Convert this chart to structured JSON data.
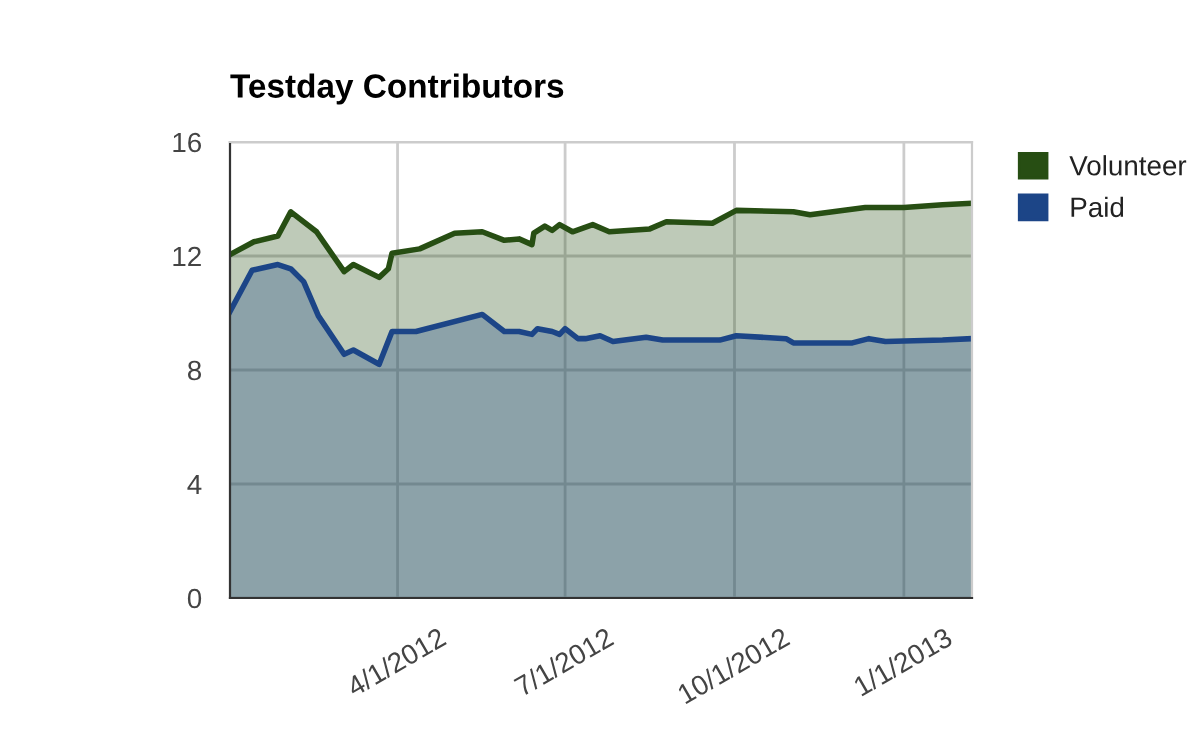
{
  "chart_data": {
    "type": "area",
    "title": "Testday Contributors",
    "xlim": [
      "2012-01-01",
      "2013-02-07"
    ],
    "xticks": [
      {
        "value": "2012-04-01",
        "label": "4/1/2012"
      },
      {
        "value": "2012-07-01",
        "label": "7/1/2012"
      },
      {
        "value": "2012-10-01",
        "label": "10/1/2012"
      },
      {
        "value": "2013-01-01",
        "label": "1/1/2013"
      }
    ],
    "ylim": [
      0,
      16
    ],
    "yticks": [
      0,
      4,
      8,
      12,
      16
    ],
    "grid": true,
    "legend": "right",
    "series": [
      {
        "name": "Volunteer",
        "color": "#274e13",
        "x": [
          "2012-01-01",
          "2012-01-14",
          "2012-01-27",
          "2012-02-03",
          "2012-02-17",
          "2012-03-03",
          "2012-03-08",
          "2012-03-22",
          "2012-03-27",
          "2012-03-29",
          "2012-04-13",
          "2012-05-02",
          "2012-05-17",
          "2012-05-29",
          "2012-06-06",
          "2012-06-13",
          "2012-06-14",
          "2012-06-20",
          "2012-06-24",
          "2012-06-28",
          "2012-07-05",
          "2012-07-16",
          "2012-07-25",
          "2012-08-16",
          "2012-08-25",
          "2012-09-19",
          "2012-10-02",
          "2012-11-02",
          "2012-11-11",
          "2012-12-11",
          "2013-01-01",
          "2013-01-22",
          "2013-02-07"
        ],
        "values": [
          12.05,
          12.5,
          12.7,
          13.55,
          12.85,
          11.45,
          11.7,
          11.25,
          11.55,
          12.1,
          12.25,
          12.8,
          12.85,
          12.55,
          12.6,
          12.4,
          12.8,
          13.05,
          12.9,
          13.1,
          12.85,
          13.1,
          12.85,
          12.95,
          13.2,
          13.15,
          13.6,
          13.55,
          13.45,
          13.7,
          13.7,
          13.8,
          13.85
        ]
      },
      {
        "name": "Paid",
        "color": "#1c4587",
        "x": [
          "2012-01-01",
          "2012-01-13",
          "2012-01-27",
          "2012-02-03",
          "2012-02-10",
          "2012-02-18",
          "2012-03-03",
          "2012-03-08",
          "2012-03-22",
          "2012-03-29",
          "2012-04-11",
          "2012-05-17",
          "2012-05-29",
          "2012-06-06",
          "2012-06-13",
          "2012-06-16",
          "2012-06-24",
          "2012-06-28",
          "2012-07-01",
          "2012-07-08",
          "2012-07-12",
          "2012-07-20",
          "2012-07-27",
          "2012-08-14",
          "2012-08-23",
          "2012-09-23",
          "2012-10-02",
          "2012-10-29",
          "2012-11-02",
          "2012-12-04",
          "2012-12-13",
          "2012-12-22",
          "2013-01-22",
          "2013-02-07"
        ],
        "values": [
          10.05,
          11.5,
          11.7,
          11.55,
          11.1,
          9.9,
          8.55,
          8.7,
          8.2,
          9.35,
          9.35,
          9.95,
          9.35,
          9.35,
          9.25,
          9.45,
          9.35,
          9.25,
          9.45,
          9.1,
          9.1,
          9.2,
          9.0,
          9.15,
          9.05,
          9.05,
          9.2,
          9.1,
          8.95,
          8.95,
          9.1,
          9.0,
          9.05,
          9.1
        ]
      }
    ]
  }
}
